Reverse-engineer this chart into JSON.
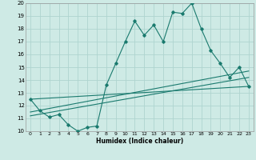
{
  "xlabel": "Humidex (Indice chaleur)",
  "bg_color": "#ceeae5",
  "grid_color": "#aed4cf",
  "line_color": "#1a7a6e",
  "xlim": [
    -0.5,
    23.5
  ],
  "ylim": [
    10,
    20
  ],
  "yticks": [
    10,
    11,
    12,
    13,
    14,
    15,
    16,
    17,
    18,
    19,
    20
  ],
  "xticks": [
    0,
    1,
    2,
    3,
    4,
    5,
    6,
    7,
    8,
    9,
    10,
    11,
    12,
    13,
    14,
    15,
    16,
    17,
    18,
    19,
    20,
    21,
    22,
    23
  ],
  "main_x": [
    0,
    1,
    2,
    3,
    4,
    5,
    6,
    7,
    8,
    9,
    10,
    11,
    12,
    13,
    14,
    15,
    16,
    17,
    18,
    19,
    20,
    21,
    22,
    23
  ],
  "main_y": [
    12.5,
    11.6,
    11.1,
    11.3,
    10.5,
    10.0,
    10.3,
    10.4,
    13.6,
    15.3,
    17.0,
    18.6,
    17.5,
    18.3,
    17.0,
    19.3,
    19.2,
    20.0,
    18.0,
    16.3,
    15.3,
    14.2,
    15.0,
    13.5
  ],
  "line2_x": [
    0,
    23
  ],
  "line2_y": [
    11.5,
    14.7
  ],
  "line3_x": [
    0,
    23
  ],
  "line3_y": [
    11.2,
    14.2
  ],
  "line4_x": [
    0,
    23
  ],
  "line4_y": [
    12.5,
    13.5
  ]
}
